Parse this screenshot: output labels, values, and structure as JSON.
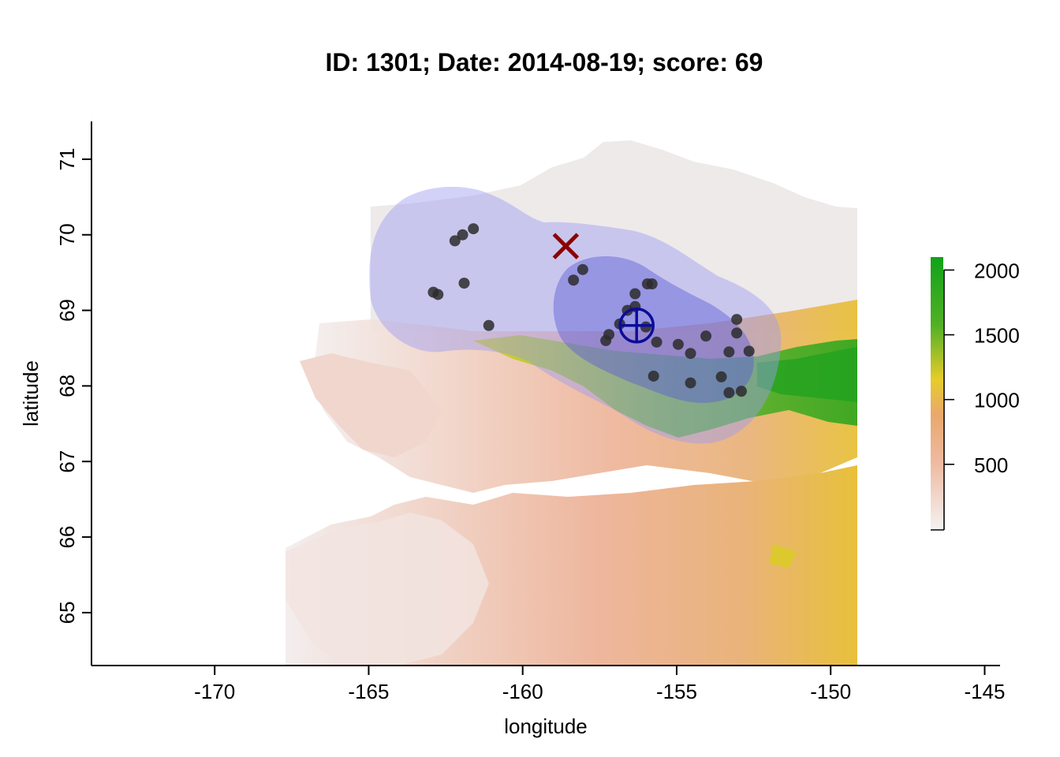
{
  "title": "ID: 1301;  Date: 2014-08-19;  score: 69",
  "x_axis": {
    "label": "longitude",
    "range": [
      -174,
      -144.5
    ],
    "ticks": [
      -170,
      -165,
      -160,
      -155,
      -150,
      -145
    ],
    "tick_labels": [
      "-170",
      "-165",
      "-160",
      "-155",
      "-150",
      "-145"
    ]
  },
  "y_axis": {
    "label": "latitude",
    "range": [
      64.3,
      71.5
    ],
    "ticks": [
      65,
      66,
      67,
      68,
      69,
      70,
      71
    ],
    "tick_labels": [
      "65",
      "66",
      "67",
      "68",
      "69",
      "70",
      "71"
    ]
  },
  "colorbar": {
    "ticks": [
      500,
      1000,
      1500,
      2000
    ],
    "tick_labels": [
      "500",
      "1000",
      "1500",
      "2000"
    ],
    "range": [
      0,
      2100
    ],
    "colors": [
      "#f4f0f0",
      "#eeb89e",
      "#e8a86c",
      "#e3d020",
      "#3aaa22",
      "#12a31a"
    ]
  },
  "colors": {
    "kernel_outer": "#9c9cf2",
    "kernel_inner": "#5a5ad8",
    "points": "#2c2c2c",
    "cross_marker": "#8b0000",
    "centroid_marker": "#0c0c9a"
  },
  "markers": {
    "cross": {
      "lon": -158.6,
      "lat": 69.85
    },
    "centroid": {
      "lon": -156.3,
      "lat": 68.8
    }
  },
  "points": [
    [
      -162.2,
      69.92
    ],
    [
      -161.95,
      70.0
    ],
    [
      -161.6,
      70.08
    ],
    [
      -162.9,
      69.24
    ],
    [
      -162.75,
      69.21
    ],
    [
      -161.9,
      69.36
    ],
    [
      -161.1,
      68.8
    ],
    [
      -158.35,
      69.4
    ],
    [
      -158.05,
      69.54
    ],
    [
      -157.3,
      68.6
    ],
    [
      -157.2,
      68.68
    ],
    [
      -156.85,
      68.82
    ],
    [
      -156.6,
      69.0
    ],
    [
      -156.35,
      69.22
    ],
    [
      -156.35,
      69.05
    ],
    [
      -155.95,
      69.35
    ],
    [
      -155.8,
      69.35
    ],
    [
      -156.0,
      68.78
    ],
    [
      -155.65,
      68.58
    ],
    [
      -155.75,
      68.13
    ],
    [
      -154.95,
      68.55
    ],
    [
      -154.55,
      68.43
    ],
    [
      -154.55,
      68.04
    ],
    [
      -154.05,
      68.66
    ],
    [
      -153.55,
      68.12
    ],
    [
      -153.3,
      68.45
    ],
    [
      -153.05,
      68.88
    ],
    [
      -153.05,
      68.7
    ],
    [
      -153.3,
      67.91
    ],
    [
      -152.9,
      67.93
    ],
    [
      -152.65,
      68.46
    ]
  ]
}
